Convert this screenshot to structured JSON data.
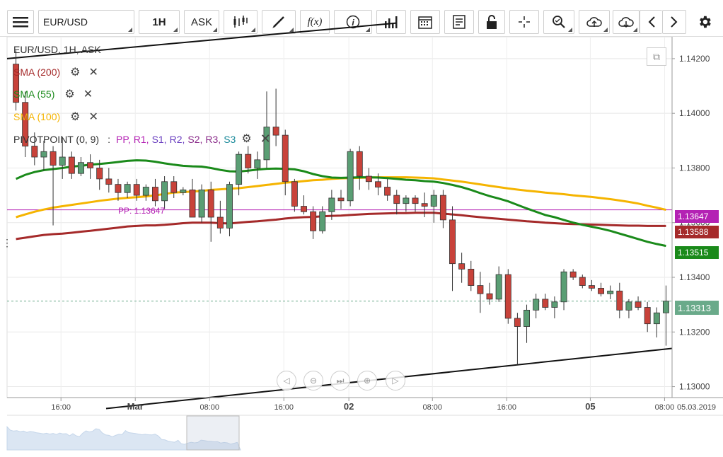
{
  "toolbar": {
    "symbol": "EUR/USD",
    "timeframe": "1H",
    "price_type": "ASK",
    "buttons": [
      {
        "name": "menu-icon"
      },
      {
        "name": "candles-icon"
      },
      {
        "name": "draw-icon"
      },
      {
        "name": "function-icon",
        "label": "f(x)"
      },
      {
        "name": "info-icon"
      },
      {
        "name": "bar-chart-icon"
      },
      {
        "name": "calendar-icon"
      },
      {
        "name": "news-icon"
      },
      {
        "name": "unlock-icon"
      },
      {
        "name": "crosshair-icon"
      },
      {
        "name": "zoom-icon"
      },
      {
        "name": "upload-icon"
      },
      {
        "name": "download-icon"
      },
      {
        "name": "chevron-left-icon"
      },
      {
        "name": "chevron-right-icon"
      },
      {
        "name": "gear-icon"
      }
    ]
  },
  "legend": {
    "title": "EUR/USD, 1H, ASK",
    "indicators": [
      {
        "label": "SMA (200)",
        "color": "#a52a2a"
      },
      {
        "label": "SMA (55)",
        "color": "#1a8a1a"
      },
      {
        "label": "SMA (100)",
        "color": "#f5b400"
      }
    ],
    "pivot": {
      "label": "PIVOTPOINT (0, 9)",
      "levels": [
        {
          "text": "PP",
          "color": "#b422b4"
        },
        {
          "text": "R1",
          "color": "#b422b4"
        },
        {
          "text": "S1",
          "color": "#6a3fc0"
        },
        {
          "text": "R2",
          "color": "#6a3fc0"
        },
        {
          "text": "S2",
          "color": "#8a2b8a"
        },
        {
          "text": "R3",
          "color": "#8a2b8a"
        },
        {
          "text": "S3",
          "color": "#1a8a9a"
        }
      ]
    }
  },
  "pp_label": "PP: 1.13647",
  "price_tags": [
    {
      "value": "1.13647",
      "color": "#b422b4"
    },
    {
      "value": "1.13588",
      "color": "#a52a2a"
    },
    {
      "value": "1.13515",
      "color": "#1a8a1a"
    },
    {
      "value": "1.13313",
      "color": "#6aaa8a"
    }
  ],
  "chart_data": {
    "type": "candlestick",
    "title": "EUR/USD, 1H, ASK",
    "y_ticks": [
      "1.14200",
      "1.14000",
      "1.13800",
      "1.13600",
      "1.13400",
      "1.13200",
      "1.13000"
    ],
    "x_ticks": [
      "16:00",
      "Mar",
      "08:00",
      "16:00",
      "02",
      "08:00",
      "16:00",
      "05",
      "08:00"
    ],
    "date_label": "05.03.2019",
    "ylim": [
      1.1296,
      1.1428
    ],
    "up_color": "#5a9e74",
    "down_color": "#c8423a",
    "candles": [
      {
        "o": 1.1418,
        "h": 1.1423,
        "l": 1.1401,
        "c": 1.1404
      },
      {
        "o": 1.1404,
        "h": 1.1408,
        "l": 1.1384,
        "c": 1.1388
      },
      {
        "o": 1.1388,
        "h": 1.1393,
        "l": 1.1381,
        "c": 1.1384
      },
      {
        "o": 1.1384,
        "h": 1.139,
        "l": 1.1379,
        "c": 1.1386
      },
      {
        "o": 1.1386,
        "h": 1.1388,
        "l": 1.1359,
        "c": 1.1381
      },
      {
        "o": 1.1381,
        "h": 1.1391,
        "l": 1.1376,
        "c": 1.1384
      },
      {
        "o": 1.1384,
        "h": 1.1386,
        "l": 1.1376,
        "c": 1.1378
      },
      {
        "o": 1.1378,
        "h": 1.1384,
        "l": 1.1377,
        "c": 1.1382
      },
      {
        "o": 1.1382,
        "h": 1.1385,
        "l": 1.1376,
        "c": 1.138
      },
      {
        "o": 1.138,
        "h": 1.1383,
        "l": 1.1372,
        "c": 1.1376
      },
      {
        "o": 1.1376,
        "h": 1.138,
        "l": 1.1371,
        "c": 1.1374
      },
      {
        "o": 1.1374,
        "h": 1.1376,
        "l": 1.1368,
        "c": 1.1371
      },
      {
        "o": 1.1371,
        "h": 1.1375,
        "l": 1.1369,
        "c": 1.1374
      },
      {
        "o": 1.1374,
        "h": 1.1376,
        "l": 1.1368,
        "c": 1.137
      },
      {
        "o": 1.137,
        "h": 1.1374,
        "l": 1.1368,
        "c": 1.1373
      },
      {
        "o": 1.1373,
        "h": 1.1376,
        "l": 1.1366,
        "c": 1.1368
      },
      {
        "o": 1.1368,
        "h": 1.1377,
        "l": 1.1365,
        "c": 1.1375
      },
      {
        "o": 1.1375,
        "h": 1.1377,
        "l": 1.1369,
        "c": 1.1371
      },
      {
        "o": 1.1371,
        "h": 1.1373,
        "l": 1.137,
        "c": 1.1372
      },
      {
        "o": 1.1372,
        "h": 1.1376,
        "l": 1.1362,
        "c": 1.1362
      },
      {
        "o": 1.1362,
        "h": 1.1374,
        "l": 1.136,
        "c": 1.1372
      },
      {
        "o": 1.1372,
        "h": 1.1375,
        "l": 1.1353,
        "c": 1.1362
      },
      {
        "o": 1.1362,
        "h": 1.1368,
        "l": 1.1356,
        "c": 1.1358
      },
      {
        "o": 1.1358,
        "h": 1.1375,
        "l": 1.1355,
        "c": 1.1374
      },
      {
        "o": 1.1374,
        "h": 1.1386,
        "l": 1.137,
        "c": 1.1385
      },
      {
        "o": 1.1385,
        "h": 1.1388,
        "l": 1.1378,
        "c": 1.138
      },
      {
        "o": 1.138,
        "h": 1.1386,
        "l": 1.1376,
        "c": 1.1383
      },
      {
        "o": 1.1383,
        "h": 1.1408,
        "l": 1.138,
        "c": 1.1395
      },
      {
        "o": 1.1395,
        "h": 1.1409,
        "l": 1.1388,
        "c": 1.1392
      },
      {
        "o": 1.1392,
        "h": 1.1394,
        "l": 1.137,
        "c": 1.1375
      },
      {
        "o": 1.1375,
        "h": 1.1376,
        "l": 1.1364,
        "c": 1.1366
      },
      {
        "o": 1.1366,
        "h": 1.137,
        "l": 1.1363,
        "c": 1.1364
      },
      {
        "o": 1.1364,
        "h": 1.1366,
        "l": 1.1354,
        "c": 1.1357
      },
      {
        "o": 1.1357,
        "h": 1.1366,
        "l": 1.1356,
        "c": 1.1364
      },
      {
        "o": 1.1364,
        "h": 1.1372,
        "l": 1.1361,
        "c": 1.1369
      },
      {
        "o": 1.1369,
        "h": 1.1372,
        "l": 1.1365,
        "c": 1.1368
      },
      {
        "o": 1.1368,
        "h": 1.1387,
        "l": 1.1366,
        "c": 1.1386
      },
      {
        "o": 1.1386,
        "h": 1.1388,
        "l": 1.1372,
        "c": 1.1377
      },
      {
        "o": 1.1377,
        "h": 1.138,
        "l": 1.1372,
        "c": 1.1375
      },
      {
        "o": 1.1375,
        "h": 1.1378,
        "l": 1.137,
        "c": 1.1373
      },
      {
        "o": 1.1373,
        "h": 1.1376,
        "l": 1.1368,
        "c": 1.137
      },
      {
        "o": 1.137,
        "h": 1.1372,
        "l": 1.1363,
        "c": 1.1367
      },
      {
        "o": 1.1367,
        "h": 1.137,
        "l": 1.1364,
        "c": 1.1369
      },
      {
        "o": 1.1369,
        "h": 1.137,
        "l": 1.1364,
        "c": 1.1367
      },
      {
        "o": 1.1367,
        "h": 1.1371,
        "l": 1.1362,
        "c": 1.1366
      },
      {
        "o": 1.1366,
        "h": 1.1372,
        "l": 1.136,
        "c": 1.137
      },
      {
        "o": 1.137,
        "h": 1.1372,
        "l": 1.1358,
        "c": 1.1361
      },
      {
        "o": 1.1361,
        "h": 1.1366,
        "l": 1.1335,
        "c": 1.1345
      },
      {
        "o": 1.1345,
        "h": 1.1349,
        "l": 1.1338,
        "c": 1.1343
      },
      {
        "o": 1.1343,
        "h": 1.1346,
        "l": 1.1335,
        "c": 1.1337
      },
      {
        "o": 1.1337,
        "h": 1.1342,
        "l": 1.1327,
        "c": 1.1334
      },
      {
        "o": 1.1334,
        "h": 1.1338,
        "l": 1.133,
        "c": 1.1332
      },
      {
        "o": 1.1332,
        "h": 1.1344,
        "l": 1.1331,
        "c": 1.1341
      },
      {
        "o": 1.1341,
        "h": 1.1343,
        "l": 1.1323,
        "c": 1.1325
      },
      {
        "o": 1.1325,
        "h": 1.1327,
        "l": 1.1308,
        "c": 1.1322
      },
      {
        "o": 1.1322,
        "h": 1.133,
        "l": 1.1316,
        "c": 1.1328
      },
      {
        "o": 1.1328,
        "h": 1.1334,
        "l": 1.1325,
        "c": 1.1332
      },
      {
        "o": 1.1332,
        "h": 1.1334,
        "l": 1.1328,
        "c": 1.1329
      },
      {
        "o": 1.1329,
        "h": 1.1333,
        "l": 1.1325,
        "c": 1.1331
      },
      {
        "o": 1.1331,
        "h": 1.1343,
        "l": 1.1328,
        "c": 1.1342
      },
      {
        "o": 1.1342,
        "h": 1.1343,
        "l": 1.1339,
        "c": 1.134
      },
      {
        "o": 1.134,
        "h": 1.1341,
        "l": 1.1336,
        "c": 1.1337
      },
      {
        "o": 1.1337,
        "h": 1.1339,
        "l": 1.1335,
        "c": 1.1336
      },
      {
        "o": 1.1336,
        "h": 1.1338,
        "l": 1.1333,
        "c": 1.1334
      },
      {
        "o": 1.1334,
        "h": 1.1337,
        "l": 1.1332,
        "c": 1.1335
      },
      {
        "o": 1.1335,
        "h": 1.1338,
        "l": 1.1325,
        "c": 1.1328
      },
      {
        "o": 1.1328,
        "h": 1.1332,
        "l": 1.1325,
        "c": 1.1331
      },
      {
        "o": 1.1331,
        "h": 1.1333,
        "l": 1.1328,
        "c": 1.1329
      },
      {
        "o": 1.1329,
        "h": 1.1331,
        "l": 1.132,
        "c": 1.1323
      },
      {
        "o": 1.1323,
        "h": 1.1329,
        "l": 1.1318,
        "c": 1.1327
      },
      {
        "o": 1.1327,
        "h": 1.1337,
        "l": 1.1315,
        "c": 1.13313
      }
    ],
    "sma200": [
      1.1354,
      1.13545,
      1.1355,
      1.13555,
      1.13558,
      1.1356,
      1.13563,
      1.13567,
      1.1357,
      1.13574,
      1.13578,
      1.13582,
      1.13586,
      1.13588,
      1.1359,
      1.1359,
      1.13592,
      1.13595,
      1.13598,
      1.136,
      1.136,
      1.136,
      1.13598,
      1.13597,
      1.136,
      1.13603,
      1.13605,
      1.13608,
      1.13611,
      1.13615,
      1.13618,
      1.1362,
      1.13621,
      1.13623,
      1.13625,
      1.13626,
      1.13628,
      1.1363,
      1.13632,
      1.13633,
      1.13634,
      1.13635,
      1.13635,
      1.13636,
      1.13636,
      1.13636,
      1.13633,
      1.1363,
      1.13627,
      1.13623,
      1.1362,
      1.13617,
      1.13614,
      1.13611,
      1.13608,
      1.13605,
      1.13603,
      1.136,
      1.13598,
      1.13596,
      1.13595,
      1.13594,
      1.13593,
      1.13592,
      1.13591,
      1.1359,
      1.13589,
      1.13589,
      1.13588,
      1.13588,
      1.13588
    ],
    "sma55": [
      1.1376,
      1.13775,
      1.13785,
      1.13792,
      1.13796,
      1.138,
      1.13805,
      1.13808,
      1.13812,
      1.13815,
      1.13818,
      1.13822,
      1.13826,
      1.13828,
      1.13827,
      1.13823,
      1.13817,
      1.13812,
      1.13808,
      1.13806,
      1.13805,
      1.138,
      1.13793,
      1.13788,
      1.13787,
      1.1379,
      1.13794,
      1.13797,
      1.13798,
      1.13797,
      1.13795,
      1.13788,
      1.13778,
      1.1377,
      1.13765,
      1.13764,
      1.13765,
      1.13766,
      1.13766,
      1.13765,
      1.13763,
      1.1376,
      1.13757,
      1.13755,
      1.13752,
      1.1375,
      1.13745,
      1.13738,
      1.1373,
      1.1372,
      1.13708,
      1.13697,
      1.13688,
      1.13678,
      1.13665,
      1.13652,
      1.1364,
      1.13628,
      1.1362,
      1.1361,
      1.136,
      1.13592,
      1.13585,
      1.13578,
      1.1357,
      1.1356,
      1.1355,
      1.1354,
      1.1353,
      1.13522,
      1.13515
    ],
    "sma100": [
      1.1362,
      1.1363,
      1.1364,
      1.13648,
      1.13655,
      1.1366,
      1.13665,
      1.1367,
      1.13675,
      1.1368,
      1.13684,
      1.13688,
      1.13691,
      1.13693,
      1.13696,
      1.137,
      1.13705,
      1.1371,
      1.13712,
      1.13714,
      1.13716,
      1.1372,
      1.13722,
      1.13724,
      1.13726,
      1.1373,
      1.13734,
      1.13738,
      1.13742,
      1.13746,
      1.13749,
      1.13752,
      1.13755,
      1.13757,
      1.1376,
      1.13762,
      1.13763,
      1.13764,
      1.13765,
      1.13766,
      1.13766,
      1.13766,
      1.13766,
      1.13765,
      1.13764,
      1.13762,
      1.13758,
      1.13754,
      1.1375,
      1.13745,
      1.1374,
      1.13735,
      1.1373,
      1.13725,
      1.13721,
      1.13717,
      1.13714,
      1.1371,
      1.13707,
      1.13704,
      1.137,
      1.13697,
      1.13694,
      1.1369,
      1.13686,
      1.13681,
      1.13676,
      1.1367,
      1.13662,
      1.13655,
      1.13647
    ],
    "pp": 1.13647,
    "upper_trendline": [
      1.142,
      1.1433
    ],
    "lower_trendline": [
      1.1292,
      1.1314
    ],
    "current_price": 1.13313
  },
  "navigator": {
    "buttons": [
      "pan-left-icon",
      "zoom-out-icon",
      "reset-icon",
      "zoom-in-icon",
      "pan-right-icon"
    ]
  }
}
